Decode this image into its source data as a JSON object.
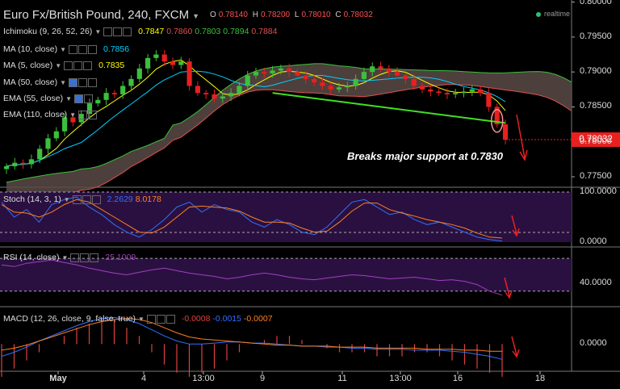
{
  "header": {
    "title": "Euro Fx/British Pound, 240, FXCM",
    "ohlc": [
      {
        "key": "O",
        "value": "0.78140"
      },
      {
        "key": "H",
        "value": "0.78200"
      },
      {
        "key": "L",
        "value": "0.78010"
      },
      {
        "key": "C",
        "value": "0.78032"
      }
    ],
    "realtime": "realtime"
  },
  "indicators": {
    "ichimoku": {
      "label": "Ichimoku (9, 26, 52, 26)",
      "values": [
        "0.7847",
        "0.7860",
        "0.7803",
        "0.7894",
        "0.7884"
      ],
      "colors": [
        "#ffff00",
        "#e05050",
        "#3cc03c",
        "#3cc03c",
        "#e05050"
      ]
    },
    "ma10": {
      "label": "MA (10, close)",
      "value": "0.7856",
      "color": "#00d0ff"
    },
    "ma5": {
      "label": "MA (5, close)",
      "value": "0.7835",
      "color": "#ffff00"
    },
    "ma50": {
      "label": "MA (50, close)"
    },
    "ema55": {
      "label": "EMA (55, close)"
    },
    "ema110": {
      "label": "EMA (110, close)"
    },
    "stoch": {
      "label": "Stoch (14, 3, 1)",
      "values": [
        "2.2629",
        "8.0178"
      ],
      "colors": [
        "#3070ff",
        "#ff8020"
      ]
    },
    "rsi": {
      "label": "RSI (14, close)",
      "value": "25.1009",
      "color": "#a040c0"
    },
    "macd": {
      "label": "MACD (12, 26, close, 9, false, true)",
      "values": [
        "-0.0008",
        "-0.0015",
        "-0.0007"
      ],
      "colors": [
        "#e04040",
        "#3070ff",
        "#ff8020"
      ]
    }
  },
  "annotation": "Breaks major support at 0.7830",
  "current_price": "0.78032",
  "colors": {
    "up_candle": "#3cc03c",
    "down_candle": "#e82020",
    "cloud": "#5a4a46",
    "trendline": "#40e020",
    "arrow": "#e82020",
    "panel_purple": "#2a1040"
  },
  "chart_data": [
    {
      "type": "candlestick",
      "title": "Euro Fx/British Pound, 240, FXCM",
      "y_ticks": [
        "0.80000",
        "0.79500",
        "0.79000",
        "0.78500",
        "0.78000",
        "0.77500"
      ],
      "ylim": [
        0.7735,
        0.8003
      ],
      "x_ticks": [
        "May",
        "4",
        "13:00",
        "9",
        "11",
        "13:00",
        "16",
        "18"
      ],
      "close_series": [
        0.7765,
        0.777,
        0.7768,
        0.7775,
        0.779,
        0.7805,
        0.7815,
        0.7835,
        0.7828,
        0.784,
        0.7855,
        0.786,
        0.787,
        0.7868,
        0.788,
        0.789,
        0.7905,
        0.792,
        0.7925,
        0.7915,
        0.791,
        0.7915,
        0.788,
        0.787,
        0.7868,
        0.7862,
        0.7865,
        0.787,
        0.788,
        0.7895,
        0.79,
        0.7898,
        0.7902,
        0.7905,
        0.79,
        0.7895,
        0.789,
        0.7885,
        0.788,
        0.7875,
        0.7878,
        0.788,
        0.789,
        0.79,
        0.7908,
        0.7905,
        0.79,
        0.7895,
        0.789,
        0.788,
        0.7875,
        0.7872,
        0.787,
        0.7868,
        0.787,
        0.7872,
        0.7875,
        0.787,
        0.785,
        0.7825,
        0.7803
      ],
      "support": 0.783,
      "current": 0.78032
    },
    {
      "type": "line",
      "title": "Stoch (14, 3, 1)",
      "y_ticks": [
        "100.0000",
        "0.0000"
      ],
      "ylim": [
        0,
        100
      ],
      "series": [
        {
          "name": "%K",
          "last": 2.2629,
          "values": [
            80,
            50,
            65,
            40,
            75,
            85,
            90,
            70,
            55,
            35,
            20,
            10,
            25,
            45,
            70,
            80,
            60,
            75,
            65,
            60,
            40,
            30,
            45,
            35,
            20,
            15,
            30,
            55,
            80,
            85,
            70,
            55,
            60,
            45,
            35,
            40,
            30,
            20,
            10,
            5,
            2
          ]
        },
        {
          "name": "%D",
          "last": 8.0178,
          "values": [
            75,
            60,
            58,
            50,
            60,
            75,
            85,
            80,
            65,
            50,
            35,
            20,
            18,
            30,
            50,
            70,
            72,
            70,
            68,
            62,
            50,
            40,
            40,
            38,
            28,
            20,
            22,
            40,
            62,
            78,
            78,
            65,
            58,
            52,
            45,
            40,
            35,
            28,
            18,
            10,
            8
          ]
        }
      ]
    },
    {
      "type": "line",
      "title": "RSI (14, close)",
      "y_ticks": [
        "40.0000"
      ],
      "ylim": [
        15,
        80
      ],
      "series": [
        {
          "name": "RSI",
          "last": 25.1009,
          "values": [
            62,
            60,
            64,
            66,
            68,
            65,
            62,
            58,
            55,
            52,
            50,
            53,
            56,
            58,
            55,
            52,
            50,
            48,
            45,
            47,
            50,
            52,
            50,
            47,
            45,
            44,
            46,
            48,
            50,
            49,
            47,
            45,
            46,
            47,
            45,
            43,
            44,
            42,
            38,
            30,
            25.1
          ]
        }
      ]
    },
    {
      "type": "bar+line",
      "title": "MACD (12, 26, close, 9, false, true)",
      "y_ticks": [
        "0.0000"
      ],
      "ylim": [
        -0.0025,
        0.0035
      ],
      "series": [
        {
          "name": "Histogram",
          "last": -0.0008,
          "values": [
            -0.0008,
            -0.0006,
            -0.0004,
            -0.0002,
            0.0,
            0.0002,
            0.0004,
            0.0005,
            0.0006,
            0.0006,
            0.0004,
            0.0002,
            -0.0002,
            -0.0005,
            -0.0007,
            -0.0008,
            -0.0007,
            -0.0006,
            -0.0004,
            -0.0002,
            0.0,
            0.0001,
            0.0002,
            0.0002,
            0.0001,
            0.0,
            -0.0001,
            -0.0002,
            -0.0002,
            -0.0002,
            -0.0003,
            -0.0003,
            -0.0003,
            -0.0002,
            -0.0002,
            -0.0003,
            -0.0004,
            -0.0005,
            -0.0006,
            -0.0007,
            -0.0008
          ]
        },
        {
          "name": "MACD",
          "last": -0.0015,
          "values": [
            -0.0012,
            -0.0008,
            -0.0003,
            0.0003,
            0.0008,
            0.0013,
            0.0018,
            0.0022,
            0.0025,
            0.0026,
            0.0024,
            0.002,
            0.0014,
            0.0008,
            0.0003,
            0.0,
            0.0,
            0.0001,
            0.0002,
            0.0002,
            0.0001,
            0.0001,
            0.0,
            -0.0001,
            -0.0002,
            -0.0002,
            -0.0003,
            -0.0003,
            -0.0004,
            -0.0004,
            -0.0005,
            -0.0005,
            -0.0005,
            -0.0006,
            -0.0006,
            -0.0006,
            -0.0007,
            -0.0008,
            -0.001,
            -0.0012,
            -0.0015
          ]
        },
        {
          "name": "Signal",
          "last": -0.0007,
          "values": [
            -0.0006,
            -0.0004,
            -0.0001,
            0.0003,
            0.0007,
            0.0011,
            0.0015,
            0.0019,
            0.0022,
            0.0024,
            0.0025,
            0.0024,
            0.0021,
            0.0016,
            0.0011,
            0.0007,
            0.0005,
            0.0004,
            0.0003,
            0.0002,
            0.0001,
            0.0,
            -0.0001,
            -0.0001,
            -0.0002,
            -0.0002,
            -0.0002,
            -0.0003,
            -0.0003,
            -0.0003,
            -0.0004,
            -0.0004,
            -0.0004,
            -0.0004,
            -0.0005,
            -0.0005,
            -0.0005,
            -0.0006,
            -0.0006,
            -0.0007,
            -0.0007
          ]
        }
      ]
    }
  ]
}
